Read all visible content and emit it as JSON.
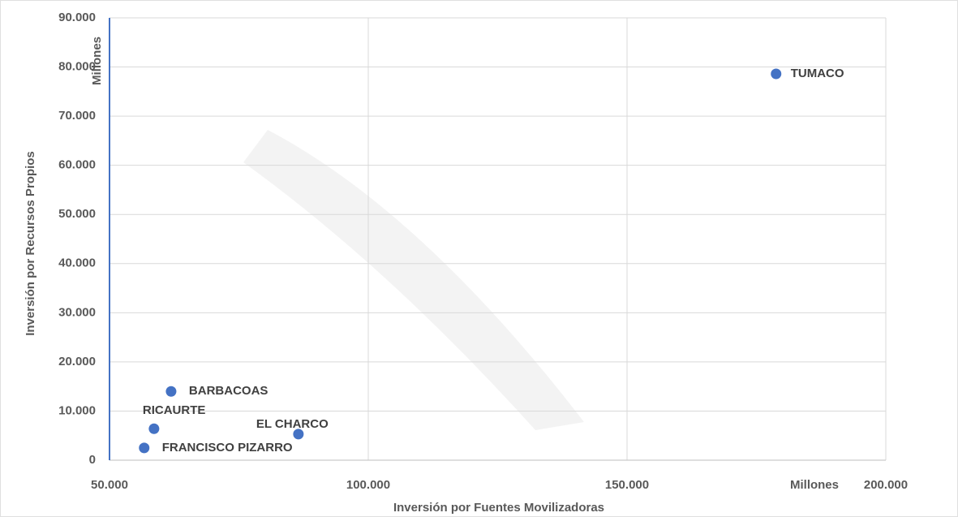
{
  "chart_data": {
    "type": "scatter",
    "x_label": "Inversión por Fuentes Movilizadoras",
    "y_label": "Inversión por Recursos Propios",
    "x_unit_label": "Millones",
    "y_unit_label": "Millones",
    "series": [
      {
        "color": "#4472c4",
        "x": [
          178800,
          61900,
          58600,
          56700,
          86500
        ],
        "values": [
          78600,
          14000,
          6400,
          2500,
          5300
        ],
        "point_labels": [
          "TUMACO",
          "BARBACOAS",
          "RICAURTE",
          "FRANCISCO PIZARRO",
          "EL CHARCO"
        ]
      }
    ],
    "xlim": [
      50000,
      200000
    ],
    "xticks": [
      {
        "value": 50000,
        "label": "50.000"
      },
      {
        "value": 100000,
        "label": "100.000"
      },
      {
        "value": 150000,
        "label": "150.000"
      },
      {
        "value": 200000,
        "label": "200.000"
      }
    ],
    "ylim": [
      0,
      90000
    ],
    "yticks": [
      0,
      {
        "value": 10000,
        "label": "10.000"
      },
      {
        "value": 20000,
        "label": "20.000"
      },
      {
        "value": 30000,
        "label": "30.000"
      },
      {
        "value": 40000,
        "label": "40.000"
      },
      {
        "value": 50000,
        "label": "50.000"
      },
      {
        "value": 60000,
        "label": "60.000"
      },
      {
        "value": 70000,
        "label": "70.000"
      },
      {
        "value": 80000,
        "label": "80.000"
      },
      {
        "value": 90000,
        "label": "90.000"
      }
    ],
    "grid": true
  }
}
